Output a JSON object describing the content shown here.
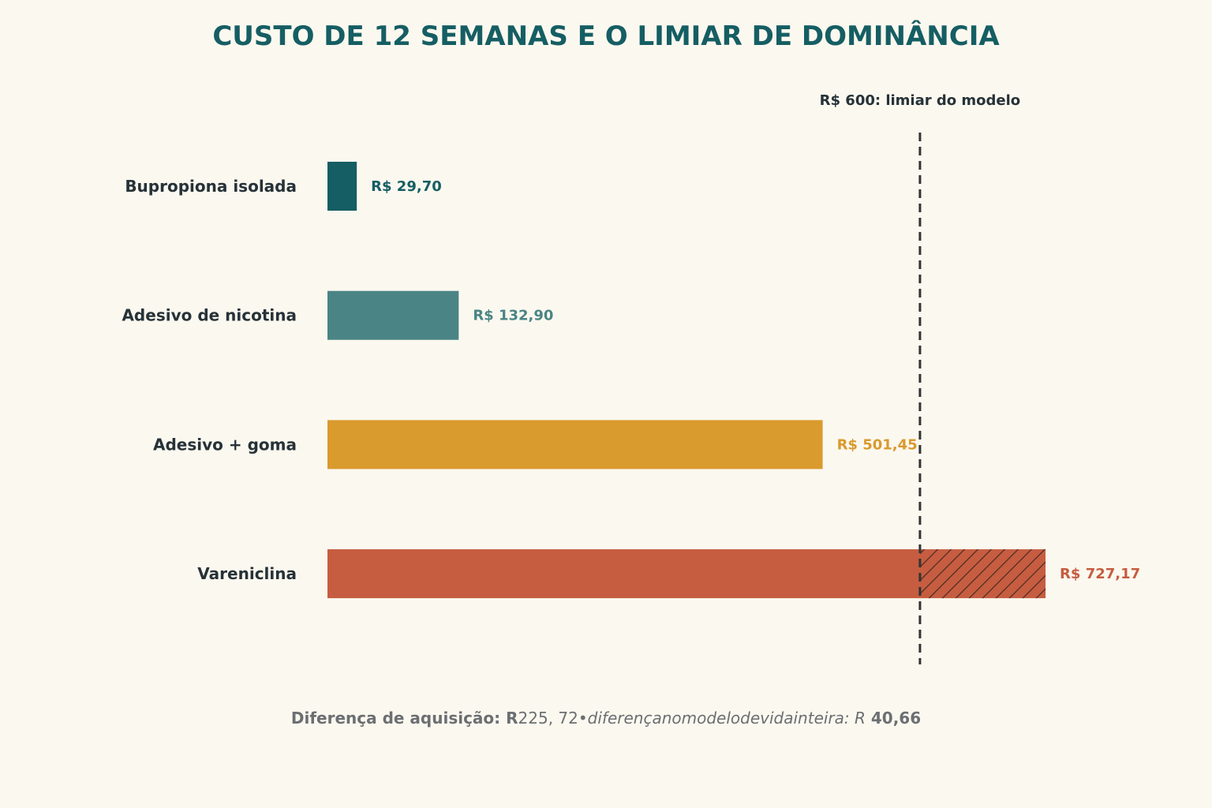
{
  "chart_data": {
    "type": "bar",
    "orientation": "horizontal",
    "title": "CUSTO DE 12 SEMANAS E O LIMIAR DE DOMINÂNCIA",
    "categories": [
      "Bupropiona isolada",
      "Adesivo de nicotina",
      "Adesivo + goma",
      "Vareniclina"
    ],
    "values": [
      29.7,
      132.9,
      501.45,
      727.17
    ],
    "value_labels": [
      "R$ 29,70",
      "R$ 132,90",
      "R$ 501,45",
      "R$ 727,17"
    ],
    "colors": [
      "#155E63",
      "#4A8485",
      "#D99A2E",
      "#C65D40"
    ],
    "xlim": [
      0,
      800
    ],
    "grid": false,
    "threshold": {
      "value": 600,
      "label": "R$ 600: limiar do modelo",
      "color": "#333333"
    },
    "excess_hatch_color": "#4A2A22",
    "footnote": {
      "part1": "Diferença de aquisição: R",
      "part2": "225, 72",
      "part3": "•",
      "part4": "diferençanomodelodevidainteira",
      "part5": ": R",
      "part6": "40,66"
    }
  }
}
